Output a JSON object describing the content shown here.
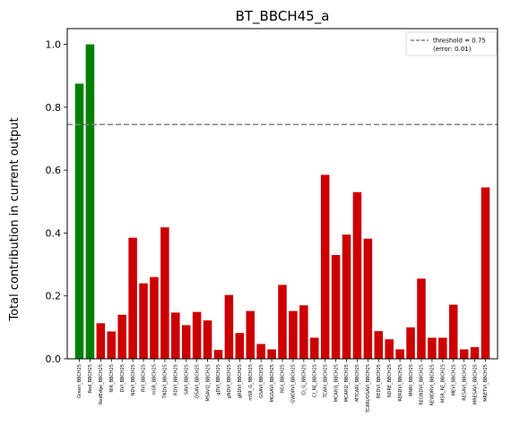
{
  "chart_data": {
    "type": "bar",
    "title": "BT_BBCH45_a",
    "xlabel": "",
    "ylabel": "Total contribution in current output",
    "ylim": [
      0,
      1.05
    ],
    "yticks": [
      "0.0",
      "0.2",
      "0.4",
      "0.6",
      "0.8",
      "1.0"
    ],
    "ytick_values": [
      0,
      0.2,
      0.4,
      0.6,
      0.8,
      1.0
    ],
    "threshold": 0.745,
    "legend": {
      "placement": "top-right",
      "line1": "threshold = 0.75",
      "line2": "(error: 0.01)"
    },
    "grid": false,
    "colors": {
      "above": "#008000",
      "below": "#cc0000",
      "threshold": "#808080"
    },
    "categories": [
      "Green_BBCH25",
      "Red_BBCH25",
      "RedEdge_BBCH25",
      "NIR_BBCH25",
      "DVI_BBCH25",
      "NDVI_BBCH25",
      "RVI_BBCH25",
      "mSR_BBCH25",
      "TNDVI_BBCH25",
      "RDVI_BBCH25",
      "SAVI_BBCH25",
      "OSAVI_BBCH25",
      "MSAVI2_BBCH25",
      "gDVI_BBCH25",
      "gNDVI_BBCH25",
      "gRDVI_BBCH25",
      "mSR_G_BBCH25",
      "GSAVI_BBCH25",
      "MGSAVI_BBCH25",
      "NGI_BBCH25",
      "GWDRVI_BBCH25",
      "CI_G_BBCH25",
      "CI_RE_BBCH25",
      "TCARI_BBCH25",
      "MCARI1_BBCH25",
      "MCARI2_BBCH25",
      "MTCARI_BBCH25",
      "TCARI/OSAVI_BBCH25",
      "REDVI_BBCH25",
      "NDRE_BBCH25",
      "RERDVI_BBCH25",
      "MNRI_BBCH25",
      "REGNDVI_BBCH25",
      "REWDRVI_BBCH25",
      "MSR_RE_BBCH25",
      "MEVI_BBCH25",
      "RESAVI_BBCH25",
      "MRESAVI_BBCH25",
      "MRETVI_BBCH25"
    ],
    "values": [
      0.875,
      1.0,
      0.113,
      0.087,
      0.14,
      0.385,
      0.24,
      0.26,
      0.418,
      0.147,
      0.107,
      0.149,
      0.122,
      0.028,
      0.203,
      0.082,
      0.152,
      0.047,
      0.03,
      0.235,
      0.152,
      0.17,
      0.067,
      0.585,
      0.33,
      0.395,
      0.53,
      0.382,
      0.088,
      0.062,
      0.03,
      0.1,
      0.255,
      0.067,
      0.067,
      0.172,
      0.03,
      0.037,
      0.545
    ]
  }
}
